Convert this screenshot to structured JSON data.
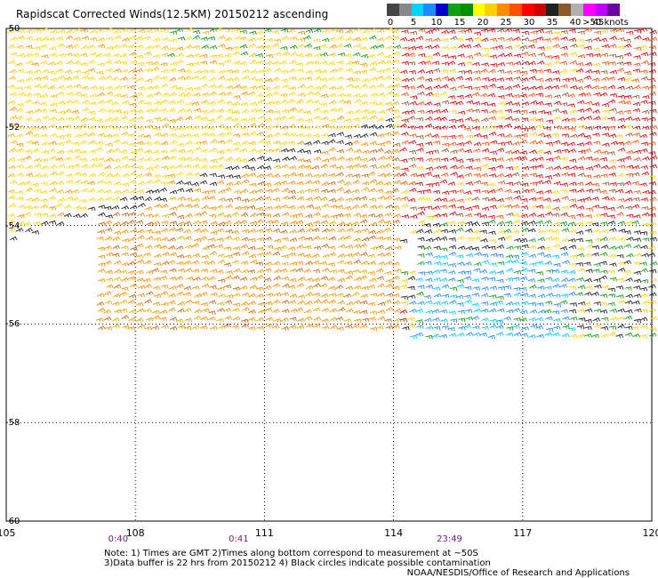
{
  "title": "Rapidscat Corrected Winds(12.5KM) 20150212 ascending",
  "legend": {
    "colors": [
      "#444444",
      "#888888",
      "#00d4ff",
      "#1e8cff",
      "#0000d0",
      "#10a010",
      "#009000",
      "#ffff00",
      "#ffd000",
      "#ff8c00",
      "#ff5000",
      "#ff0000",
      "#d00000",
      "#202020",
      "#8b5a2b",
      "#b0b0b0",
      "#ff00ff",
      "#c000ff",
      "#7000a0"
    ],
    "tick_labels": [
      "0",
      "5",
      "10",
      "15",
      "20",
      "25",
      "30",
      "35",
      "40",
      "45",
      ">50 knots"
    ]
  },
  "map": {
    "lon_labels": [
      "105",
      "108",
      "111",
      "114",
      "117",
      "120"
    ],
    "lat_labels": [
      "-50",
      "-52",
      "-54",
      "-56",
      "-58",
      "-60"
    ],
    "lon_range": [
      105,
      120
    ],
    "lat_range": [
      -50,
      -60
    ],
    "grid": "dotted",
    "times": [
      {
        "label": "0:40",
        "lon": 107.6
      },
      {
        "label": "0:41",
        "lon": 110.4
      },
      {
        "label": "23:49",
        "lon": 115.3
      }
    ]
  },
  "notes": {
    "line1": "Note: 1) Times are GMT 2)Times along bottom correspond to measurement at ~50S",
    "line2": "3)Data buffer is 22 hrs from 20150212 4) Black circles indicate possible contamination",
    "credit": "NOAA/NESDIS/Office of Research and Applications"
  }
}
